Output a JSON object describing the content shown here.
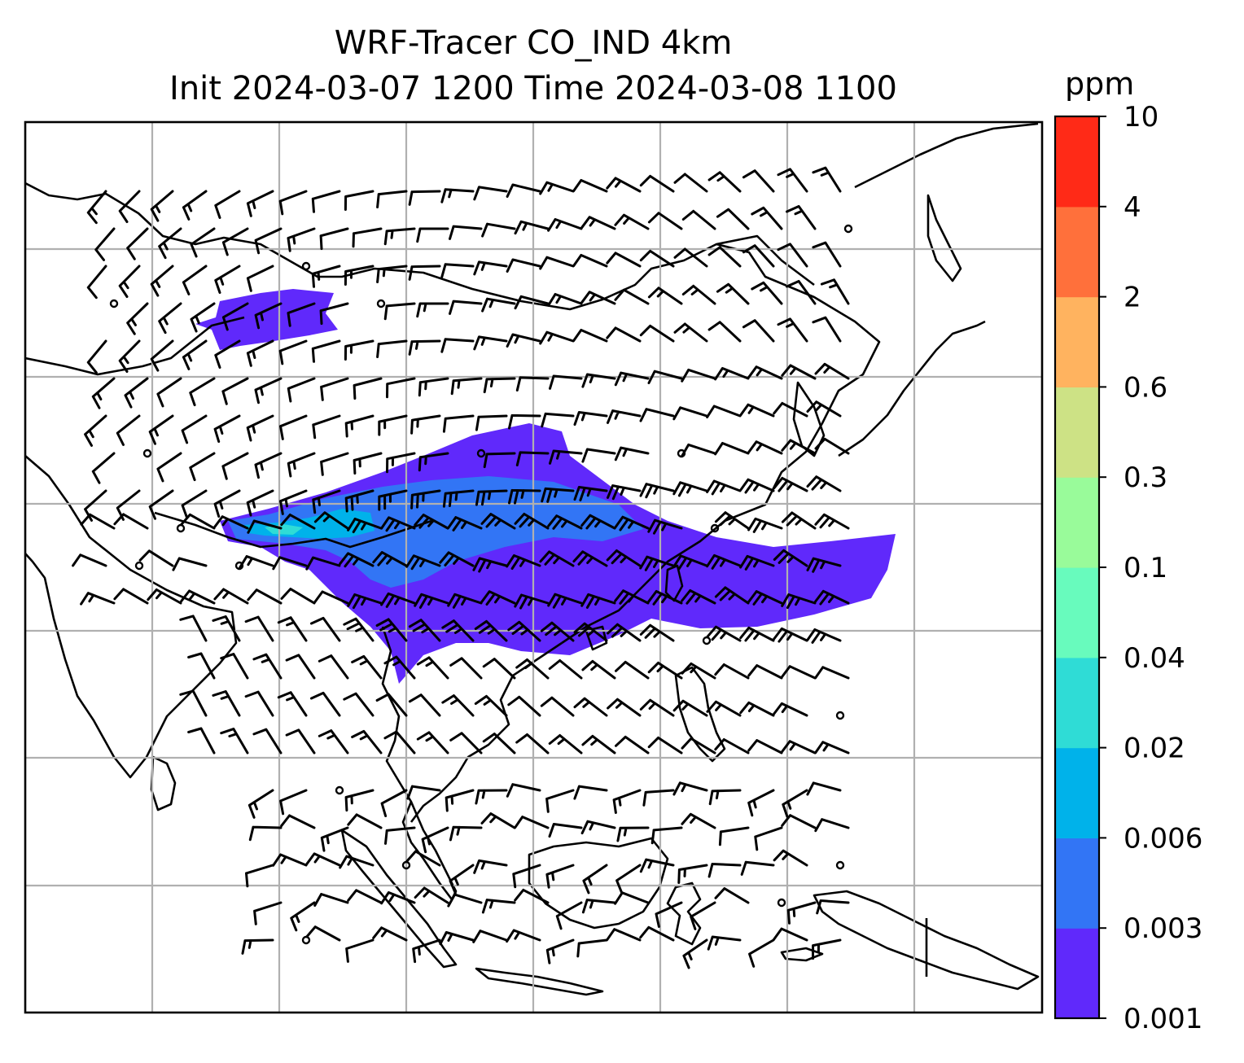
{
  "title": {
    "line1": "WRF-Tracer CO_IND 4km",
    "line2": "Init 2024-03-07 1200 Time 2024-03-08 1100"
  },
  "colorbar": {
    "unit": "ppm",
    "levels": [
      "0.001",
      "0.003",
      "0.006",
      "0.02",
      "0.04",
      "0.1",
      "0.3",
      "0.6",
      "2",
      "4",
      "10"
    ],
    "colors": [
      "#6029fb",
      "#3275f5",
      "#00b2ea",
      "#2fdcd6",
      "#68fbbd",
      "#99fb9a",
      "#cde285",
      "#ffb35f",
      "#ff703b",
      "#ff2a17"
    ]
  },
  "map": {
    "gridlines": true,
    "coastline_color": "#000000",
    "grid_color": "#b0b0b0",
    "plume_colors": {
      "outer": "#6029fb",
      "inner": "#3275f5",
      "core": "#00b2ea",
      "peak": "#2fdcd6"
    },
    "wind_barbs": true
  }
}
